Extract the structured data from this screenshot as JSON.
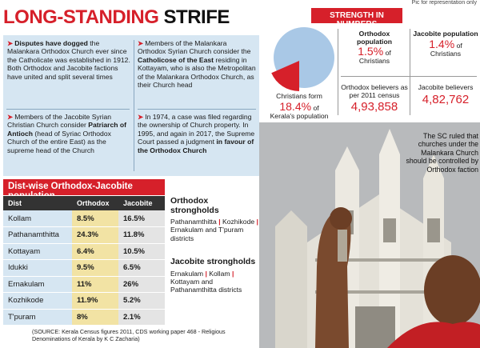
{
  "credit": "Pic for representation only",
  "headline": {
    "part1": "LONG-STANDING",
    "part2": "STRIFE"
  },
  "bullets": [
    {
      "lead": "Disputes have dogged",
      "rest": " the Malankara Orthodox Church ever since the Catholicate was established in 1912. Both Orthodox and Jacobite factions have united and split several times"
    },
    {
      "lead": "",
      "rest": "Members of the Jacobite Syrian Christian Church consider ",
      "bold": "Patriarch of Antioch",
      "tail": " (head of Syriac Orthodox Church of the entire East) as the supreme head of the Church"
    },
    {
      "lead": "",
      "rest": "Members of the Malankara Orthodox Syrian Church consider the ",
      "bold": "Catholicose of the East",
      "tail": " residing in Kottayam, who is also the Metropolitan of the Malankara Orthodox Church, as their Church head"
    },
    {
      "lead": "",
      "rest": "In 1974, a case was filed regarding the ownership of Church property. In 1995, and again in 2017, the Supreme Court passed a judgment ",
      "bold": "in favour of the Orthodox Church",
      "tail": ""
    }
  ],
  "dist_table": {
    "title": "Dist-wise Orthodox-Jacobite population",
    "headers": [
      "Dist",
      "Orthodox",
      "Jacobite"
    ],
    "rows": [
      [
        "Kollam",
        "8.5%",
        "16.5%"
      ],
      [
        "Pathanamthitta",
        "24.3%",
        "11.8%"
      ],
      [
        "Kottayam",
        "6.4%",
        "10.5%"
      ],
      [
        "Idukki",
        "9.5%",
        "6.5%"
      ],
      [
        "Ernakulam",
        "11%",
        "26%"
      ],
      [
        "Kozhikode",
        "11.9%",
        "5.2%"
      ],
      [
        "T'puram",
        "8%",
        "2.1%"
      ]
    ]
  },
  "orthodox_strongholds": {
    "title": "Orthodox strongholds",
    "places": [
      "Pathanamthitta",
      "Kozhikode",
      "Ernakulam"
    ],
    "suffix": "and T'puram districts"
  },
  "jacobite_strongholds": {
    "title": "Jacobite strongholds",
    "places": [
      "Ernakulam",
      "Kollam",
      "Kottayam"
    ],
    "suffix": "and Pathanamthitta districts"
  },
  "source": "(SOURCE: Kerala Census figures 2011, CDS working paper 468 - Religious Denominations of Kerala by K C Zacharia)",
  "strength": {
    "title": "STRENGTH IN NUMBERS",
    "christians_label": "Christians form",
    "christians_value": "18.4%",
    "christians_of": "of",
    "christians_suffix": "Kerala's population",
    "christians_share": 18.4,
    "orthodox_label": "Orthodox population",
    "orthodox_value": "1.5%",
    "orthodox_of": "of",
    "orthodox_suffix": "Christians",
    "jacobite_label": "Jacobite population",
    "jacobite_value": "1.4%",
    "jacobite_of": "of",
    "jacobite_suffix": "Christians",
    "orthodox_believers_label": "Orthodox believers as per 2011 census",
    "orthodox_believers_value": "4,93,858",
    "jacobite_believers_label": "Jacobite believers",
    "jacobite_believers_value": "4,82,762"
  },
  "sc_note": "The SC ruled that churches under the Malankara Church should be controlled by Orthodox faction",
  "colors": {
    "accent": "#d6202a",
    "panel": "#d6e6f2",
    "pie": "#a9c8e6"
  }
}
